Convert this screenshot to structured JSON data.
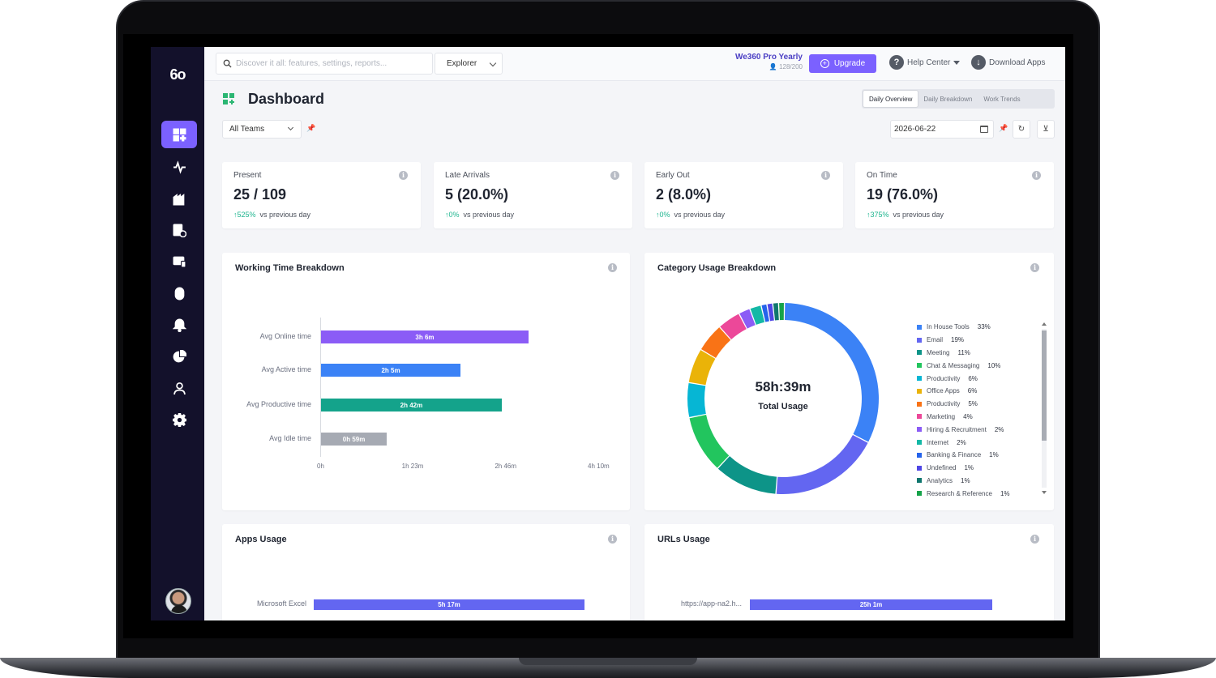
{
  "topbar": {
    "search_placeholder": "Discover it all: features, settings, reports...",
    "explorer_label": "Explorer",
    "plan_name": "We360 Pro Yearly",
    "plan_seats": "128/200",
    "upgrade_label": "Upgrade",
    "help_label": "Help Center",
    "download_label": "Download Apps"
  },
  "sidebar": {
    "logo": "6o",
    "items": [
      {
        "icon": "dashboard-icon",
        "active": true
      },
      {
        "icon": "activity-icon"
      },
      {
        "icon": "office-icon"
      },
      {
        "icon": "report-icon"
      },
      {
        "icon": "monitor-icon"
      },
      {
        "icon": "mouse-icon"
      },
      {
        "icon": "bell-icon"
      },
      {
        "icon": "pie-icon"
      },
      {
        "icon": "user-icon"
      },
      {
        "icon": "settings-icon"
      }
    ]
  },
  "header": {
    "title": "Dashboard",
    "tabs": [
      {
        "label": "Daily Overview",
        "active": true
      },
      {
        "label": "Daily Breakdown"
      },
      {
        "label": "Work Trends"
      }
    ],
    "team_filter": "All Teams",
    "date": "2026-06-22"
  },
  "stats": [
    {
      "label": "Present",
      "value": "25 / 109",
      "change": "↑525%",
      "suffix": "vs previous day"
    },
    {
      "label": "Late Arrivals",
      "value": "5 (20.0%)",
      "change": "↑0%",
      "suffix": "vs previous day"
    },
    {
      "label": "Early Out",
      "value": "2 (8.0%)",
      "change": "↑0%",
      "suffix": "vs previous day"
    },
    {
      "label": "On Time",
      "value": "19 (76.0%)",
      "change": "↑375%",
      "suffix": "vs previous day"
    }
  ],
  "working_time": {
    "title": "Working Time Breakdown",
    "bars": [
      {
        "label": "Avg Online time",
        "value_text": "3h 6m",
        "minutes": 186,
        "color": "#8b5cf6"
      },
      {
        "label": "Avg Active time",
        "value_text": "2h 5m",
        "minutes": 125,
        "color": "#3b82f6"
      },
      {
        "label": "Avg Productive time",
        "value_text": "2h 42m",
        "minutes": 162,
        "color": "#14a38b"
      },
      {
        "label": "Avg Idle time",
        "value_text": "0h 59m",
        "minutes": 59,
        "color": "#a6aab3"
      }
    ],
    "ticks": [
      "0h",
      "1h 23m",
      "2h 46m",
      "4h 10m"
    ],
    "max_minutes": 250
  },
  "category_usage": {
    "title": "Category Usage Breakdown",
    "total": "58h:39m",
    "total_label": "Total Usage",
    "items": [
      {
        "name": "In House Tools",
        "pct": "33%",
        "value": 33,
        "color": "#3b82f6"
      },
      {
        "name": "Email",
        "pct": "19%",
        "value": 19,
        "color": "#6366f1"
      },
      {
        "name": "Meeting",
        "pct": "11%",
        "value": 11,
        "color": "#0d9488"
      },
      {
        "name": "Chat & Messaging",
        "pct": "10%",
        "value": 10,
        "color": "#22c55e"
      },
      {
        "name": "Productivity",
        "pct": "6%",
        "value": 6,
        "color": "#06b6d4"
      },
      {
        "name": "Office Apps",
        "pct": "6%",
        "value": 6,
        "color": "#eab308"
      },
      {
        "name": "Productivity",
        "pct": "5%",
        "value": 5,
        "color": "#f97316"
      },
      {
        "name": "Marketing",
        "pct": "4%",
        "value": 4,
        "color": "#ec4899"
      },
      {
        "name": "Hiring & Recruitment",
        "pct": "2%",
        "value": 2,
        "color": "#8b5cf6"
      },
      {
        "name": "Internet",
        "pct": "2%",
        "value": 2,
        "color": "#14b8a6"
      },
      {
        "name": "Banking & Finance",
        "pct": "1%",
        "value": 1,
        "color": "#2563eb"
      },
      {
        "name": "Undefined",
        "pct": "1%",
        "value": 1,
        "color": "#4f46e5"
      },
      {
        "name": "Analytics",
        "pct": "1%",
        "value": 1,
        "color": "#0f766e"
      },
      {
        "name": "Research & Reference",
        "pct": "1%",
        "value": 1,
        "color": "#16a34a"
      }
    ]
  },
  "apps_usage": {
    "title": "Apps Usage",
    "bar": {
      "label": "Microsoft Excel",
      "value_text": "5h 17m",
      "color": "#6366f1"
    }
  },
  "urls_usage": {
    "title": "URLs Usage",
    "bar": {
      "label": "https://app-na2.h...",
      "value_text": "25h 1m",
      "color": "#6366f1"
    }
  },
  "chart_data": [
    {
      "type": "bar",
      "title": "Working Time Breakdown",
      "categories": [
        "Avg Online time",
        "Avg Active time",
        "Avg Productive time",
        "Avg Idle time"
      ],
      "values": [
        186,
        125,
        162,
        59
      ],
      "value_labels": [
        "3h 6m",
        "2h 5m",
        "2h 42m",
        "0h 59m"
      ],
      "ylabel": "",
      "xlabel": "",
      "xlim_labels": [
        "0h",
        "1h 23m",
        "2h 46m",
        "4h 10m"
      ],
      "orientation": "horizontal"
    },
    {
      "type": "pie",
      "title": "Category Usage Breakdown",
      "categories": [
        "In House Tools",
        "Email",
        "Meeting",
        "Chat & Messaging",
        "Productivity",
        "Office Apps",
        "Productivity",
        "Marketing",
        "Hiring & Recruitment",
        "Internet",
        "Banking & Finance",
        "Undefined",
        "Analytics",
        "Research & Reference"
      ],
      "values": [
        33,
        19,
        11,
        10,
        6,
        6,
        5,
        4,
        2,
        2,
        1,
        1,
        1,
        1
      ],
      "center_text": "58h:39m",
      "center_label": "Total Usage",
      "legend": "right"
    }
  ]
}
